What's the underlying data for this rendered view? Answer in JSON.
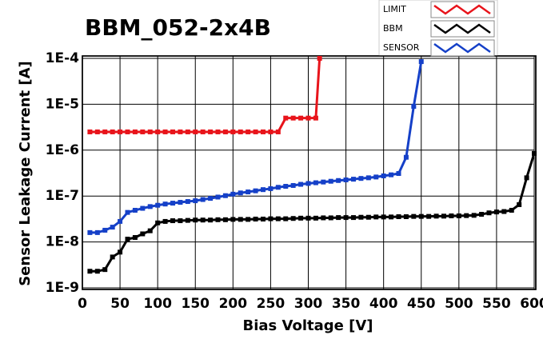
{
  "chart_data": {
    "type": "line",
    "title": "BBM_052-2x4B",
    "x_label": "Bias Voltage [V]",
    "y_label": "Sensor Leakage Current [A]",
    "xlim": [
      0,
      600
    ],
    "xticks": [
      0,
      50,
      100,
      150,
      200,
      250,
      300,
      350,
      400,
      450,
      500,
      550,
      600
    ],
    "ylim": [
      1e-09,
      0.0001
    ],
    "y_log": true,
    "yticks": [
      {
        "value": 1e-09,
        "label": "1E-9"
      },
      {
        "value": 1e-08,
        "label": "1E-8"
      },
      {
        "value": 1e-07,
        "label": "1E-7"
      },
      {
        "value": 1e-06,
        "label": "1E-6"
      },
      {
        "value": 1e-05,
        "label": "1E-5"
      },
      {
        "value": 0.0001,
        "label": "1E-4"
      }
    ],
    "grid": true,
    "series": [
      {
        "name": "LIMIT",
        "color": "#e8141b",
        "x": [
          10,
          20,
          30,
          40,
          50,
          60,
          70,
          80,
          90,
          100,
          110,
          120,
          130,
          140,
          150,
          160,
          170,
          180,
          190,
          200,
          210,
          220,
          230,
          240,
          250,
          260,
          270,
          280,
          290,
          300,
          310,
          315
        ],
        "values": [
          2.5e-06,
          2.5e-06,
          2.5e-06,
          2.5e-06,
          2.5e-06,
          2.5e-06,
          2.5e-06,
          2.5e-06,
          2.5e-06,
          2.5e-06,
          2.5e-06,
          2.5e-06,
          2.5e-06,
          2.5e-06,
          2.5e-06,
          2.5e-06,
          2.5e-06,
          2.5e-06,
          2.5e-06,
          2.5e-06,
          2.5e-06,
          2.5e-06,
          2.5e-06,
          2.5e-06,
          2.5e-06,
          2.5e-06,
          5e-06,
          5e-06,
          5e-06,
          5e-06,
          5e-06,
          0.0001
        ]
      },
      {
        "name": "BBM",
        "color": "#000000",
        "x": [
          10,
          20,
          30,
          40,
          50,
          60,
          70,
          80,
          90,
          100,
          110,
          120,
          130,
          140,
          150,
          160,
          170,
          180,
          190,
          200,
          210,
          220,
          230,
          240,
          250,
          260,
          270,
          280,
          290,
          300,
          310,
          320,
          330,
          340,
          350,
          360,
          370,
          380,
          390,
          400,
          410,
          420,
          430,
          440,
          450,
          460,
          470,
          480,
          490,
          500,
          510,
          520,
          530,
          540,
          550,
          560,
          570,
          580,
          590,
          600
        ],
        "values": [
          2.3e-09,
          2.3e-09,
          2.5e-09,
          4.7e-09,
          6e-09,
          1.15e-08,
          1.25e-08,
          1.5e-08,
          1.75e-08,
          2.6e-08,
          2.8e-08,
          2.9e-08,
          2.9e-08,
          2.95e-08,
          3e-08,
          3e-08,
          3e-08,
          3.05e-08,
          3.05e-08,
          3.1e-08,
          3.1e-08,
          3.1e-08,
          3.15e-08,
          3.15e-08,
          3.2e-08,
          3.2e-08,
          3.2e-08,
          3.25e-08,
          3.3e-08,
          3.3e-08,
          3.3e-08,
          3.35e-08,
          3.35e-08,
          3.4e-08,
          3.4e-08,
          3.4e-08,
          3.45e-08,
          3.45e-08,
          3.5e-08,
          3.5e-08,
          3.5e-08,
          3.55e-08,
          3.55e-08,
          3.6e-08,
          3.6e-08,
          3.6e-08,
          3.65e-08,
          3.65e-08,
          3.7e-08,
          3.7e-08,
          3.75e-08,
          3.8e-08,
          4e-08,
          4.3e-08,
          4.5e-08,
          4.6e-08,
          4.9e-08,
          6.5e-08,
          2.5e-07,
          8.5e-07
        ]
      },
      {
        "name": "SENSOR",
        "color": "#1540c8",
        "x": [
          10,
          20,
          30,
          40,
          50,
          60,
          70,
          80,
          90,
          100,
          110,
          120,
          130,
          140,
          150,
          160,
          170,
          180,
          190,
          200,
          210,
          220,
          230,
          240,
          250,
          260,
          270,
          280,
          290,
          300,
          310,
          320,
          330,
          340,
          350,
          360,
          370,
          380,
          390,
          400,
          410,
          420,
          430,
          440,
          450
        ],
        "values": [
          1.6e-08,
          1.6e-08,
          1.8e-08,
          2.1e-08,
          2.8e-08,
          4.4e-08,
          4.9e-08,
          5.4e-08,
          5.9e-08,
          6.3e-08,
          6.7e-08,
          7e-08,
          7.3e-08,
          7.6e-08,
          7.9e-08,
          8.4e-08,
          8.9e-08,
          9.5e-08,
          1.02e-07,
          1.1e-07,
          1.17e-07,
          1.23e-07,
          1.3e-07,
          1.38e-07,
          1.45e-07,
          1.55e-07,
          1.63e-07,
          1.7e-07,
          1.8e-07,
          1.88e-07,
          1.95e-07,
          2.02e-07,
          2.1e-07,
          2.18e-07,
          2.25e-07,
          2.33e-07,
          2.42e-07,
          2.5e-07,
          2.6e-07,
          2.75e-07,
          2.9e-07,
          3.1e-07,
          7e-07,
          9e-06,
          8.5e-05
        ]
      }
    ]
  }
}
